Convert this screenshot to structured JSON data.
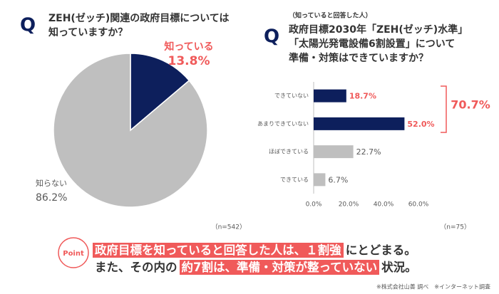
{
  "chart_data": [
    {
      "type": "pie",
      "q_label": "Q",
      "title": [
        "ZEH(ゼッチ)関連の政府目標については",
        "知っていますか？"
      ],
      "categories": [
        "知っている",
        "知らない"
      ],
      "values": [
        13.8,
        86.2
      ],
      "value_labels": [
        "13.8%",
        "86.2%"
      ],
      "colors": [
        "#0d1f5c",
        "#bfbfbf"
      ],
      "label_colors": [
        "#f05a5a",
        "#595959"
      ],
      "note": "（n=542）"
    },
    {
      "type": "bar",
      "orientation": "horizontal",
      "q_label": "Q",
      "subtitle": "（知っていると回答した人）",
      "title": [
        "政府目標2030年「ZEH(ゼッチ)水準」",
        "「太陽光発電設備6割設置」について",
        "準備・対策はできていますか？"
      ],
      "categories": [
        "できていない",
        "あまりできていない",
        "ほぼできている",
        "できている"
      ],
      "values": [
        18.7,
        52.0,
        22.7,
        6.7
      ],
      "value_labels": [
        "18.7%",
        "52.0%",
        "22.7%",
        "6.7%"
      ],
      "colors": [
        "#0d1f5c",
        "#0d1f5c",
        "#bfbfbf",
        "#bfbfbf"
      ],
      "label_colors": [
        "#f05a5a",
        "#f05a5a",
        "#595959",
        "#595959"
      ],
      "xlim": [
        0,
        60
      ],
      "xticks": [
        {
          "value": 0,
          "label": "0.0%"
        },
        {
          "value": 20,
          "label": "20.0%"
        },
        {
          "value": 40,
          "label": "40.0%"
        },
        {
          "value": 60,
          "label": "60.0%"
        }
      ],
      "annotation": "70.7%",
      "note": "（n=75）"
    }
  ],
  "point": {
    "badge": "Point",
    "lines": [
      [
        {
          "text": "政府目標を知っていると回答した人は、１割強",
          "highlight": true
        },
        {
          "text": "にとどまる。",
          "highlight": false
        }
      ],
      [
        {
          "text": "また、その内の",
          "highlight": false
        },
        {
          "text": "約7割は、準備・対策が整っていない",
          "highlight": true
        },
        {
          "text": "状況。",
          "highlight": false
        }
      ]
    ]
  },
  "source": "※株式会社山善 調べ　※インターネット調査"
}
